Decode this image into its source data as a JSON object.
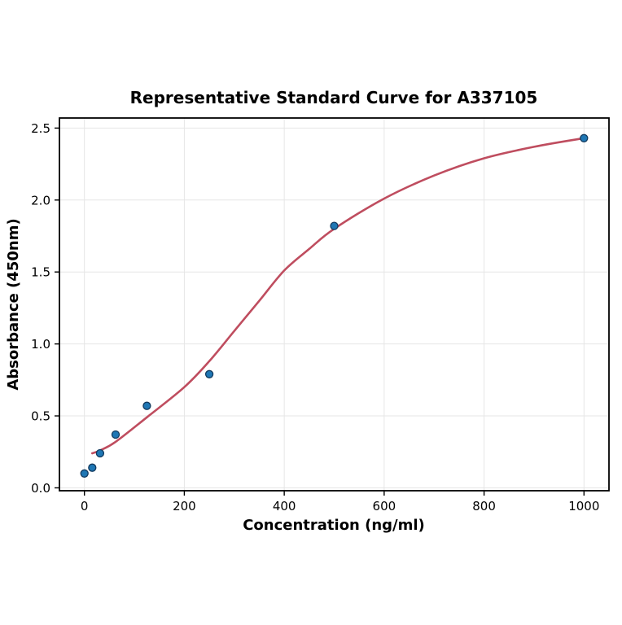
{
  "page": {
    "background": "#ffffff"
  },
  "chart_data": {
    "type": "scatter",
    "title": "Representative Standard Curve for A337105",
    "xlabel": "Concentration (ng/ml)",
    "ylabel": "Absorbance (450nm)",
    "xlim": [
      -50,
      1050
    ],
    "ylim": [
      -0.02,
      2.57
    ],
    "xticks": [
      0,
      200,
      400,
      600,
      800,
      1000
    ],
    "xtick_labels": [
      "0",
      "200",
      "400",
      "600",
      "800",
      "1000"
    ],
    "yticks": [
      0,
      0.5,
      1.0,
      1.5,
      2.0,
      2.5
    ],
    "ytick_labels": [
      "0.0",
      "0.5",
      "1.0",
      "1.5",
      "2.0",
      "2.5"
    ],
    "grid": true,
    "legend": "none",
    "style": {
      "grid_color": "#e6e6e6",
      "spine_color": "#000000",
      "tick_color": "#000000",
      "background": "#ffffff"
    },
    "series": [
      {
        "name": "4pl-fit-curve",
        "type": "line",
        "line_color": "#bf4d5f",
        "line_width": 2.6,
        "points": [
          [
            15.6,
            0.24
          ],
          [
            31.25,
            0.26
          ],
          [
            62.5,
            0.32
          ],
          [
            125,
            0.49
          ],
          [
            200,
            0.7
          ],
          [
            250,
            0.88
          ],
          [
            300,
            1.09
          ],
          [
            350,
            1.3
          ],
          [
            400,
            1.51
          ],
          [
            450,
            1.66
          ],
          [
            500,
            1.8
          ],
          [
            600,
            2.01
          ],
          [
            700,
            2.17
          ],
          [
            800,
            2.29
          ],
          [
            900,
            2.37
          ],
          [
            1000,
            2.43
          ]
        ]
      },
      {
        "name": "standard-points",
        "type": "scatter",
        "marker_color": "#1f77b4",
        "marker_edge_color": "#123a5f",
        "marker_radius": 4.5,
        "points": [
          [
            0,
            0.1
          ],
          [
            15.6,
            0.14
          ],
          [
            31.25,
            0.24
          ],
          [
            62.5,
            0.37
          ],
          [
            125,
            0.57
          ],
          [
            250,
            0.79
          ],
          [
            500,
            1.82
          ],
          [
            1000,
            2.43
          ]
        ]
      }
    ]
  }
}
